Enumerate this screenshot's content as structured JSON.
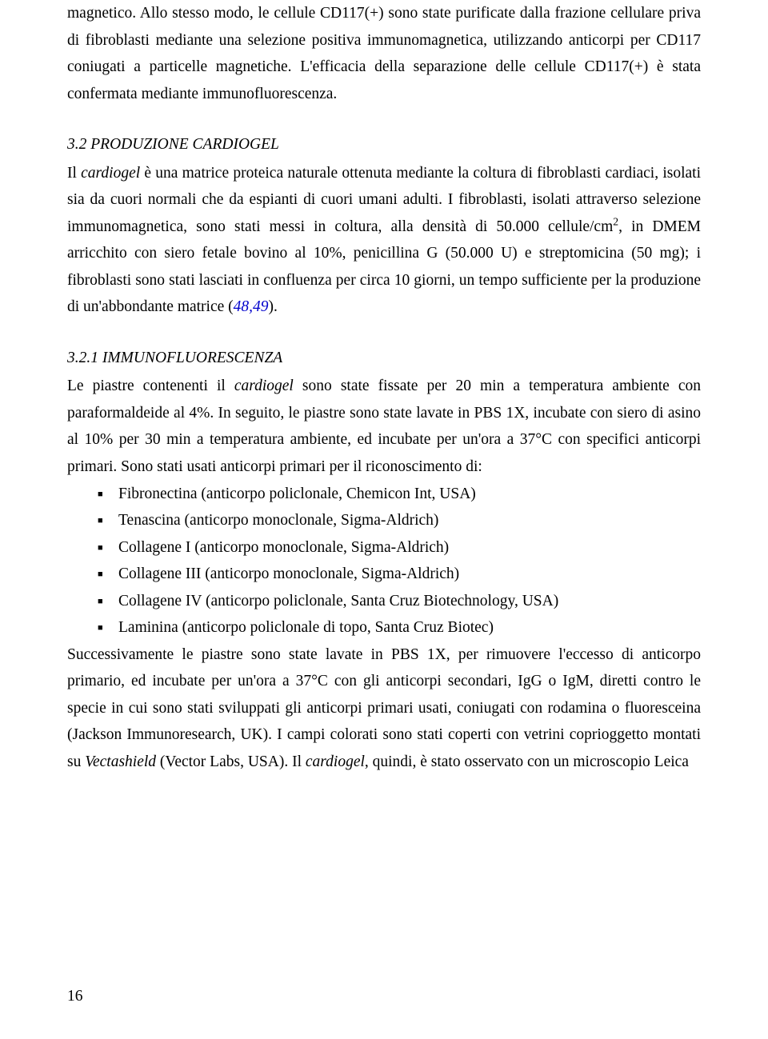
{
  "pageNumber": "16",
  "intro": {
    "part1": "magnetico. Allo stesso modo, le cellule CD117(+) sono state purificate dalla frazione cellulare priva di fibroblasti mediante una selezione positiva immunomagnetica, utilizzando anticorpi per CD117 coniugati a particelle magnetiche. L'efficacia della separazione delle cellule CD117(+) è stata confermata mediante immunofluorescenza."
  },
  "section32": {
    "heading": "3.2 PRODUZIONE CARDIOGEL",
    "p1a": "Il ",
    "p1b": "cardiogel",
    "p1c": " è una matrice proteica naturale ottenuta mediante la coltura di fibroblasti cardiaci, isolati sia da cuori normali che da espianti di cuori umani adulti. I fibroblasti, isolati attraverso selezione immunomagnetica, sono stati messi in coltura, alla densità di 50.000 cellule/cm",
    "p1d": ", in DMEM arricchito con siero fetale bovino al 10%, penicillina G (50.000 U) e streptomicina (50 mg); i fibroblasti sono stati lasciati in confluenza per circa 10 giorni, un tempo sufficiente per la produzione di un'abbondante matrice (",
    "cite": "48,49",
    "p1e": ")."
  },
  "section321": {
    "heading": "3.2.1 IMMUNOFLUORESCENZA",
    "p1a": "Le piastre contenenti il ",
    "p1b": "cardiogel",
    "p1c": " sono state fissate per 20 min a temperatura ambiente con paraformaldeide al 4%. In seguito, le piastre sono state lavate in PBS 1X,  incubate con siero di asino al 10% per 30 min a temperatura ambiente, ed incubate per un'ora a 37°C con specifici anticorpi primari. Sono stati usati anticorpi primari per il riconoscimento di:",
    "items": [
      "Fibronectina (anticorpo policlonale, Chemicon Int, USA)",
      "Tenascina (anticorpo monoclonale, Sigma-Aldrich)",
      "Collagene I (anticorpo monoclonale, Sigma-Aldrich)",
      "Collagene III (anticorpo monoclonale, Sigma-Aldrich)",
      "Collagene IV (anticorpo policlonale, Santa Cruz Biotechnology, USA)",
      " Laminina (anticorpo policlonale di topo, Santa Cruz Biotec)"
    ],
    "p2a": "Successivamente le piastre sono state lavate in PBS 1X, per rimuovere l'eccesso di anticorpo primario, ed incubate per un'ora a 37°C con gli anticorpi secondari, IgG o IgM, diretti contro le specie in cui sono stati sviluppati gli anticorpi primari usati, coniugati con rodamina o fluoresceina (Jackson Immunoresearch, UK). I campi colorati sono stati coperti con vetrini coprioggetto montati su ",
    "p2b": "Vectashield",
    "p2c": " (Vector Labs, USA). Il ",
    "p2d": "cardiogel",
    "p2e": ", quindi, è stato osservato con un microscopio Leica"
  }
}
